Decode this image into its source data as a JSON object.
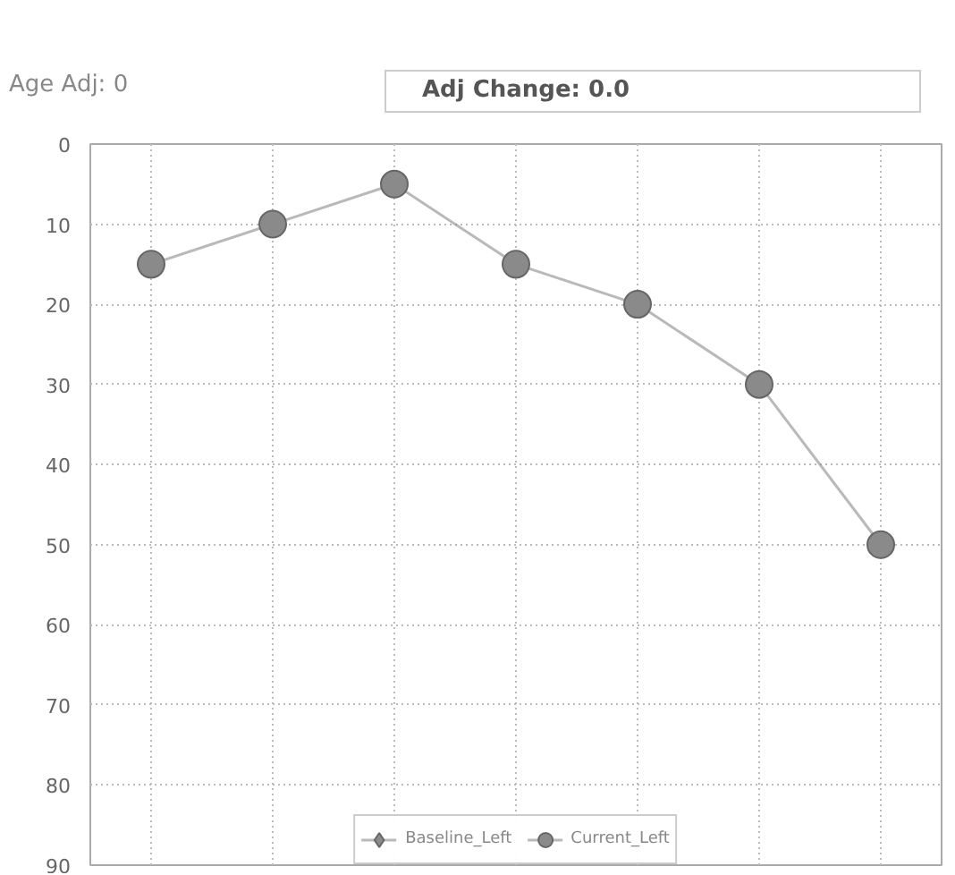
{
  "chart_data": {
    "type": "line",
    "categories": [
      null,
      null,
      null,
      null,
      null,
      null,
      null
    ],
    "series": [
      {
        "name": "Baseline_Left",
        "color": "#8a8a8a",
        "marker": "diamond",
        "values": [
          null,
          null,
          null,
          null,
          null,
          null,
          null
        ]
      },
      {
        "name": "Current_Left",
        "color": "#8a8a8a",
        "marker": "circle",
        "values": [
          15,
          10,
          5,
          15,
          20,
          30,
          50
        ]
      }
    ],
    "ylim": [
      90,
      0
    ],
    "yticks": [
      0,
      10,
      20,
      30,
      40,
      50,
      60,
      70,
      80,
      90
    ],
    "grid": true,
    "legend": "bottom",
    "tick_labels": "y",
    "annotations": [
      "Age Adj:  0",
      "Adj Change:  0.0"
    ]
  }
}
